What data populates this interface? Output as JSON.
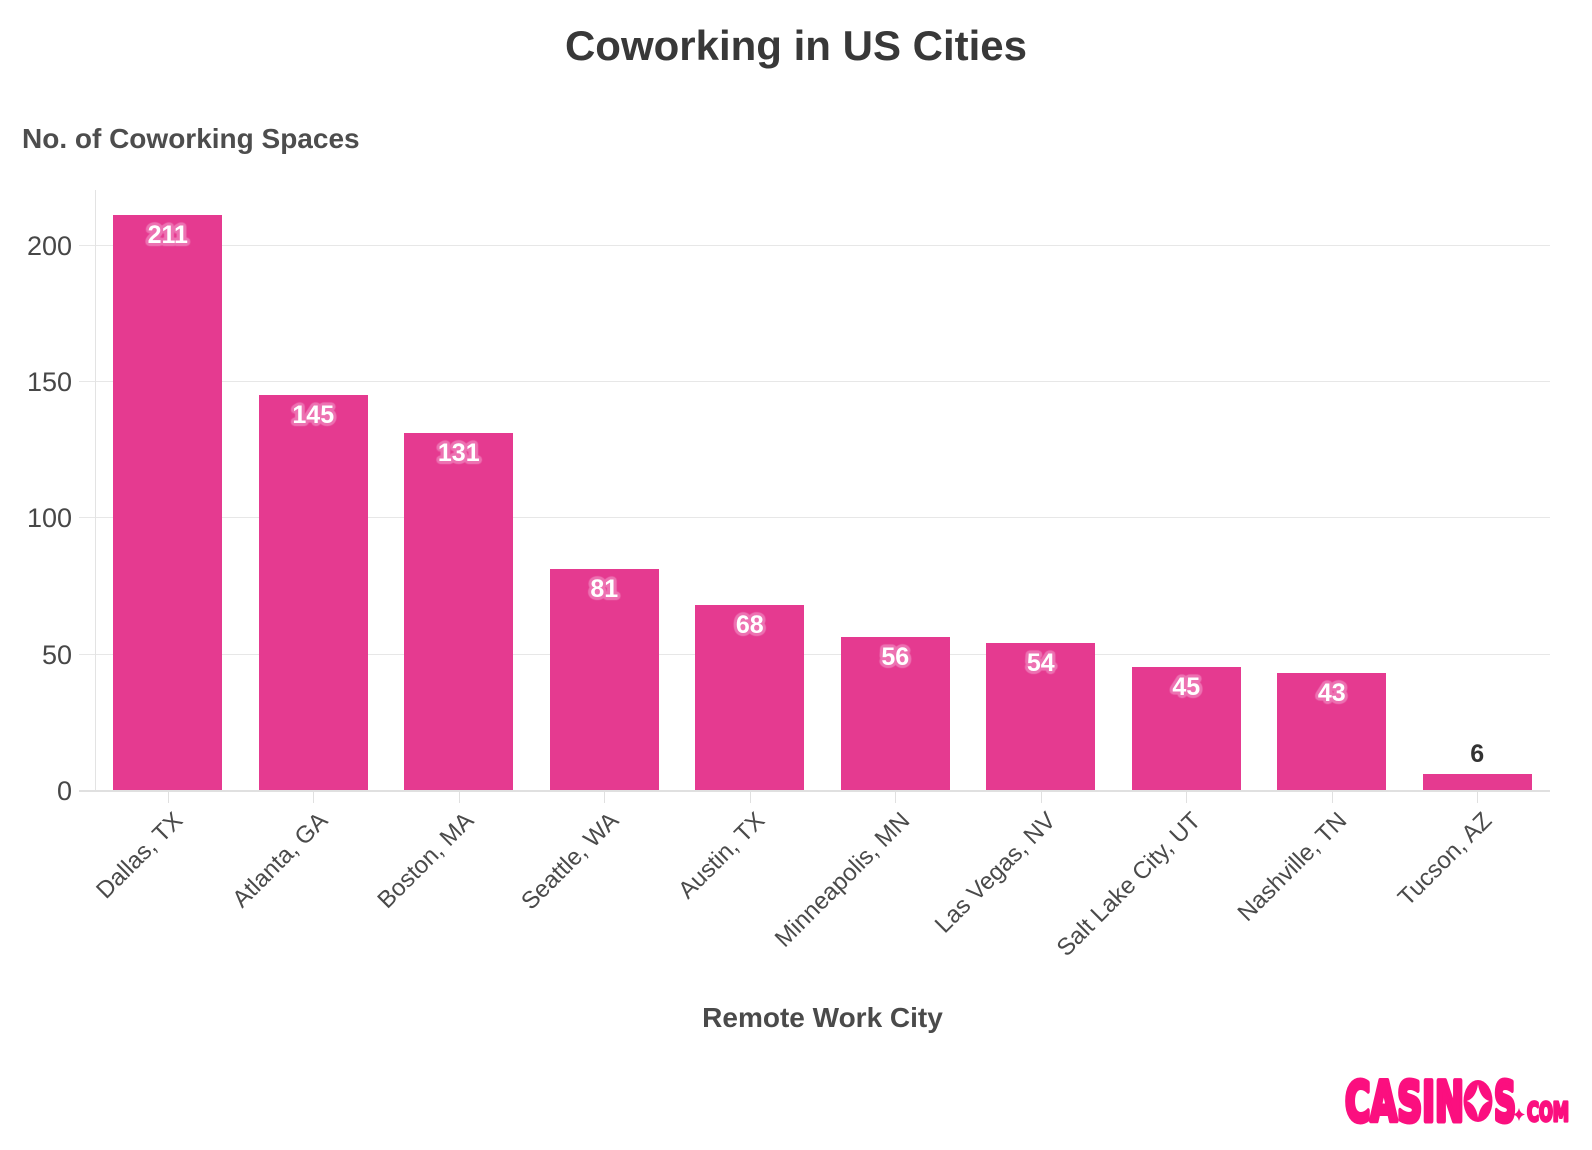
{
  "title": "Coworking in US Cities",
  "chart_data": {
    "type": "bar",
    "title": "Coworking in US Cities",
    "xlabel": "Remote Work City",
    "ylabel": "No. of Coworking Spaces",
    "categories": [
      "Dallas, TX",
      "Atlanta, GA",
      "Boston, MA",
      "Seattle, WA",
      "Austin, TX",
      "Minneapolis, MN",
      "Las Vegas, NV",
      "Salt Lake City, UT",
      "Nashville, TN",
      "Tucson, AZ"
    ],
    "values": [
      211,
      145,
      131,
      81,
      68,
      56,
      54,
      45,
      43,
      6
    ],
    "yticks": [
      0,
      50,
      100,
      150,
      200
    ],
    "ylim": [
      0,
      220
    ],
    "grid": true,
    "legend": false,
    "bar_color": "#e53a90",
    "value_label_inside_color": "#ffffff",
    "value_label_halo_color": "#ed72b2",
    "value_label_outside_color": "#333333"
  },
  "branding": {
    "logo_text": "CASINOS",
    "logo_suffix": "COM",
    "logo_color": "#fb0f7f"
  }
}
